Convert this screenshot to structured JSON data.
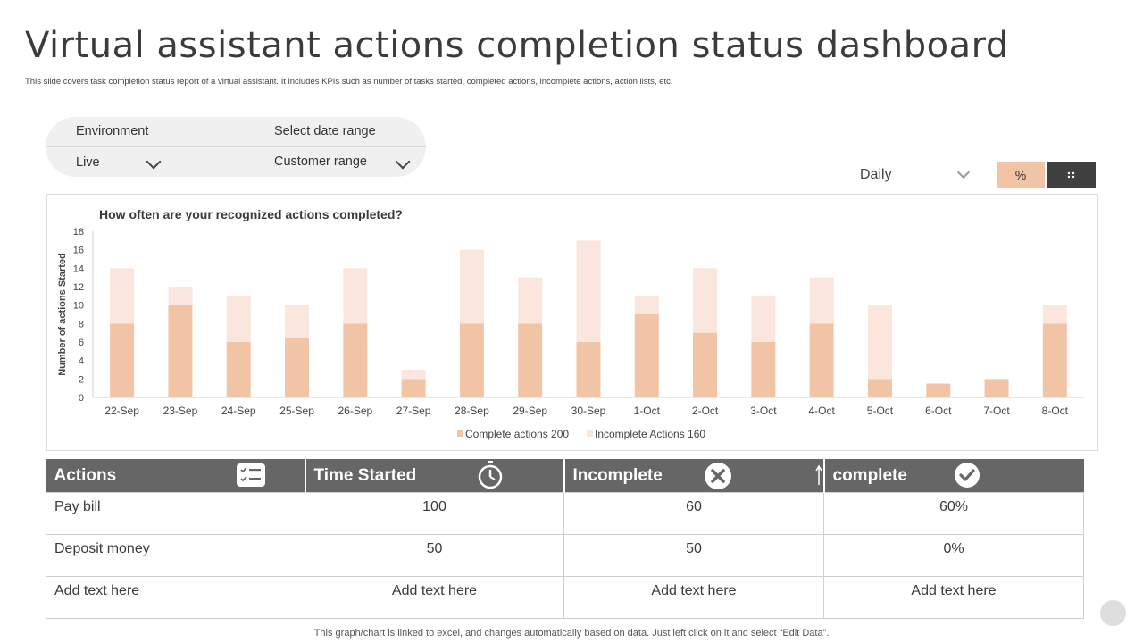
{
  "page": {
    "title": "Virtual assistant actions completion status dashboard",
    "subtitle": "This slide covers task completion status report of a virtual assistant. It includes KPIs  such as number of tasks started, completed actions, incomplete  actions, action lists, etc.",
    "footer": "This graph/chart is linked to excel,  and changes automatically based on data. Just left click on it and select “Edit Data”."
  },
  "filters": {
    "environment_label": "Environment",
    "environment_value": "Live",
    "date_label": "Select date range",
    "date_value": "Customer range"
  },
  "controls": {
    "period": "Daily",
    "percent_button": "%",
    "grid_button_icon": "dots-icon"
  },
  "colors": {
    "complete": "#f2c4a6",
    "incomplete": "#fae6dc",
    "header": "#666666"
  },
  "chart_data": {
    "type": "bar",
    "stacked": true,
    "title": "How often are your recognized actions completed?",
    "ylabel": "Number of actions  Started",
    "xlabel": "",
    "ylim": [
      0,
      18
    ],
    "yticks": [
      0,
      2,
      4,
      6,
      8,
      10,
      12,
      14,
      16,
      18
    ],
    "categories": [
      "22-Sep",
      "23-Sep",
      "24-Sep",
      "25-Sep",
      "26-Sep",
      "27-Sep",
      "28-Sep",
      "29-Sep",
      "30-Sep",
      "1-Oct",
      "2-Oct",
      "3-Oct",
      "4-Oct",
      "5-Oct",
      "6-Oct",
      "7-Oct",
      "8-Oct"
    ],
    "series": [
      {
        "name": "Complete actions 200",
        "values": [
          8,
          10,
          6,
          6.5,
          8,
          2,
          8,
          8,
          6,
          9,
          7,
          6,
          8,
          2,
          1.5,
          2,
          8
        ]
      },
      {
        "name": "Incomplete Actions 160",
        "values": [
          6,
          2,
          5,
          3.5,
          6,
          1,
          8,
          5,
          11,
          2,
          7,
          5,
          5,
          8,
          0,
          0,
          2
        ]
      }
    ],
    "legend": "bottom",
    "grid": false
  },
  "table": {
    "headers": [
      {
        "label": "Actions",
        "icon": "checklist-icon"
      },
      {
        "label": "Time Started",
        "icon": "stopwatch-icon"
      },
      {
        "label": "Incomplete",
        "icon": "close-circle-icon"
      },
      {
        "label": "complete",
        "icon": "check-circle-icon"
      }
    ],
    "rows": [
      [
        "Pay bill",
        "100",
        "60",
        "60%"
      ],
      [
        "Deposit money",
        "50",
        "50",
        "0%"
      ],
      [
        "Add text here",
        "Add text here",
        "Add text here",
        "Add text here"
      ]
    ]
  }
}
